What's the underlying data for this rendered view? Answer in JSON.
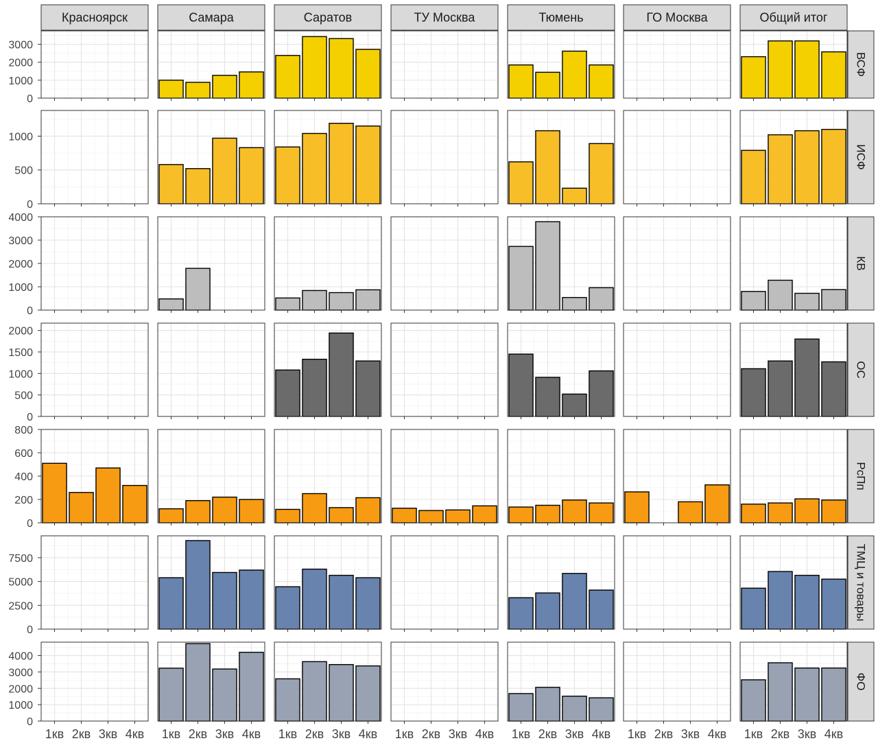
{
  "chart_data": {
    "type": "bar",
    "layout": "facet-grid",
    "categories": [
      "1кв",
      "2кв",
      "3кв",
      "4кв"
    ],
    "columns": [
      "Красноярск",
      "Самара",
      "Саратов",
      "ТУ Москва",
      "Тюмень",
      "ГО Москва",
      "Общий итог"
    ],
    "rows": [
      {
        "name": "ВСФ",
        "color": "#F5D000",
        "ylim": [
          0,
          3750
        ],
        "yticks": [
          0,
          1000,
          2000,
          3000
        ],
        "values": [
          [
            null,
            null,
            null,
            null
          ],
          [
            1000,
            880,
            1270,
            1460
          ],
          [
            2380,
            3430,
            3320,
            2720
          ],
          [
            null,
            null,
            null,
            null
          ],
          [
            1850,
            1440,
            2620,
            1850
          ],
          [
            null,
            null,
            null,
            null
          ],
          [
            2310,
            3190,
            3190,
            2580
          ]
        ]
      },
      {
        "name": "ИСФ",
        "color": "#F7BE27",
        "ylim": [
          0,
          1380
        ],
        "yticks": [
          0,
          500,
          1000
        ],
        "values": [
          [
            null,
            null,
            null,
            null
          ],
          [
            580,
            520,
            970,
            830
          ],
          [
            840,
            1040,
            1190,
            1150
          ],
          [
            null,
            null,
            null,
            null
          ],
          [
            620,
            1080,
            230,
            890
          ],
          [
            null,
            null,
            null,
            null
          ],
          [
            790,
            1020,
            1080,
            1100
          ]
        ]
      },
      {
        "name": "КВ",
        "color": "#BDBDBD",
        "ylim": [
          0,
          4000
        ],
        "yticks": [
          0,
          1000,
          2000,
          3000,
          4000
        ],
        "values": [
          [
            null,
            null,
            null,
            null
          ],
          [
            480,
            1790,
            null,
            null
          ],
          [
            520,
            840,
            750,
            870
          ],
          [
            null,
            null,
            null,
            null
          ],
          [
            2730,
            3790,
            540,
            960
          ],
          [
            null,
            null,
            null,
            null
          ],
          [
            800,
            1280,
            720,
            880
          ]
        ]
      },
      {
        "name": "ОС",
        "color": "#6B6B6B",
        "ylim": [
          0,
          2170
        ],
        "yticks": [
          0,
          500,
          1000,
          1500,
          2000
        ],
        "values": [
          [
            null,
            null,
            null,
            null
          ],
          [
            null,
            null,
            null,
            null
          ],
          [
            1080,
            1330,
            1940,
            1290
          ],
          [
            null,
            null,
            null,
            null
          ],
          [
            1450,
            910,
            520,
            1060
          ],
          [
            null,
            null,
            null,
            null
          ],
          [
            1110,
            1290,
            1800,
            1270
          ]
        ]
      },
      {
        "name": "РсПп",
        "color": "#F79B12",
        "ylim": [
          0,
          800
        ],
        "yticks": [
          0,
          200,
          400,
          600,
          800
        ],
        "values": [
          [
            510,
            260,
            470,
            320
          ],
          [
            120,
            190,
            220,
            200
          ],
          [
            115,
            250,
            130,
            215
          ],
          [
            125,
            105,
            110,
            145
          ],
          [
            135,
            150,
            195,
            170
          ],
          [
            265,
            0,
            180,
            325
          ],
          [
            160,
            170,
            205,
            195
          ]
        ]
      },
      {
        "name": "ТМЦ и товары",
        "color": "#6783AE",
        "ylim": [
          0,
          9800
        ],
        "yticks": [
          0,
          2500,
          5000,
          7500
        ],
        "values": [
          [
            null,
            null,
            null,
            null
          ],
          [
            5400,
            9300,
            5950,
            6200
          ],
          [
            4450,
            6300,
            5650,
            5400
          ],
          [
            null,
            null,
            null,
            null
          ],
          [
            3300,
            3800,
            5850,
            4100
          ],
          [
            null,
            null,
            null,
            null
          ],
          [
            4300,
            6050,
            5650,
            5250
          ]
        ]
      },
      {
        "name": "ФО",
        "color": "#98A2B3",
        "ylim": [
          0,
          4820
        ],
        "yticks": [
          0,
          1000,
          2000,
          3000,
          4000
        ],
        "values": [
          [
            null,
            null,
            null,
            null
          ],
          [
            3230,
            4730,
            3180,
            4200
          ],
          [
            2580,
            3630,
            3450,
            3370
          ],
          [
            null,
            null,
            null,
            null
          ],
          [
            1680,
            2060,
            1520,
            1420
          ],
          [
            null,
            null,
            null,
            null
          ],
          [
            2520,
            3560,
            3240,
            3240
          ]
        ]
      }
    ],
    "grid": true,
    "legend": "none"
  }
}
